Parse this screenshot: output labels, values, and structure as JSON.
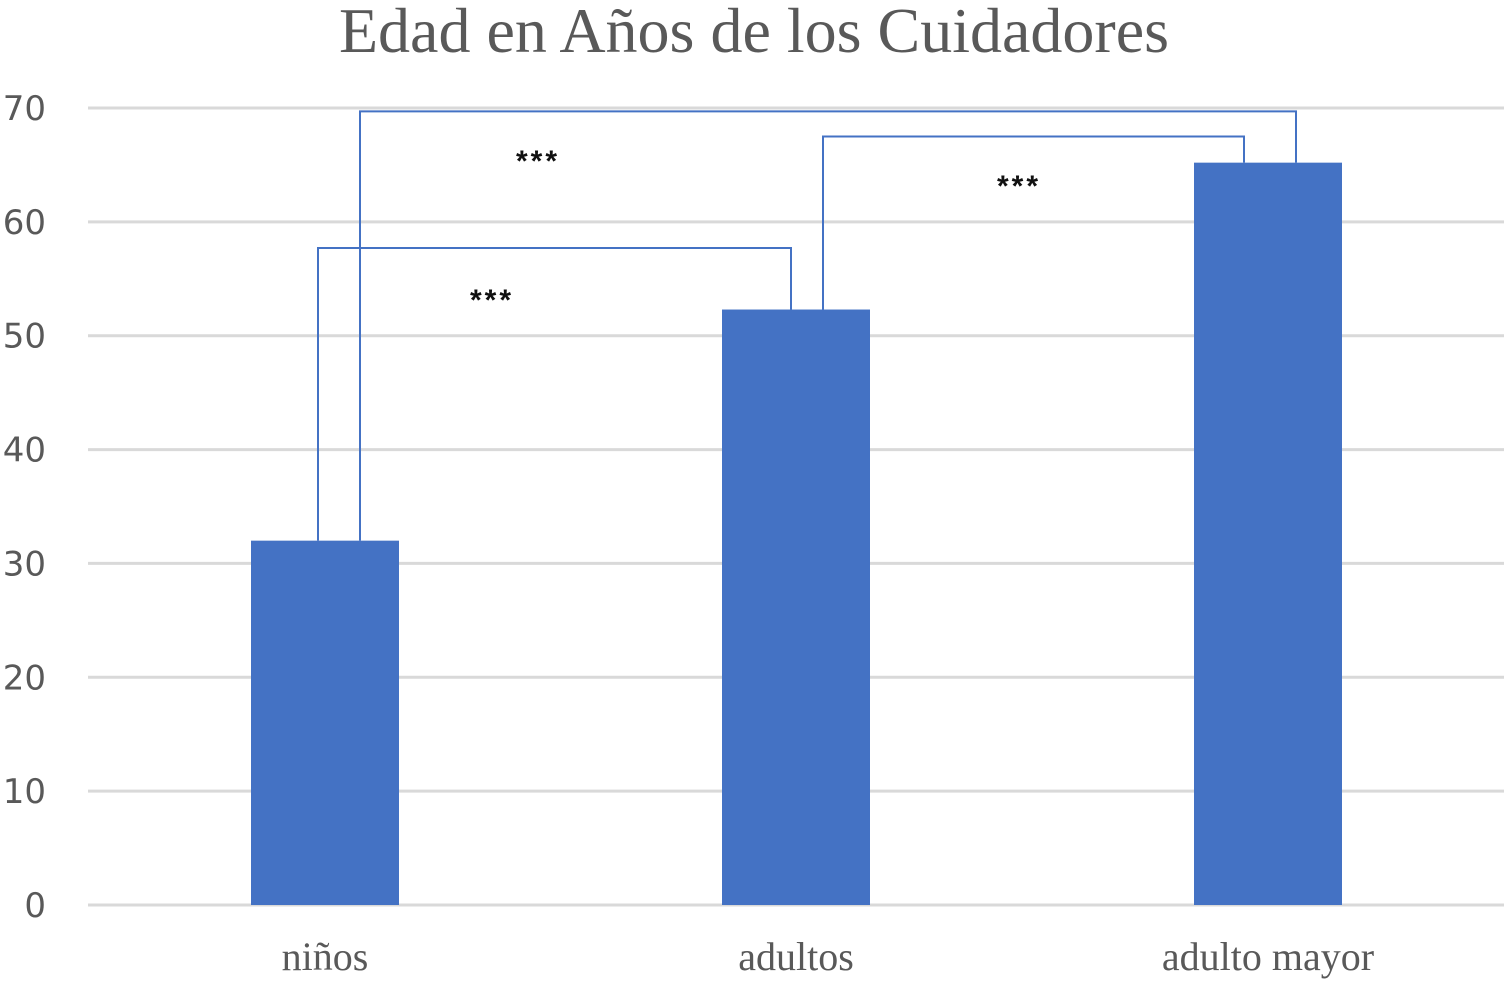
{
  "chart_data": {
    "type": "bar",
    "title": "Edad en Años de los Cuidadores",
    "xlabel": "",
    "ylabel": "",
    "categories": [
      "niños",
      "adultos",
      "adulto mayor"
    ],
    "values": [
      32,
      52.3,
      65.2
    ],
    "ylim": [
      0,
      70
    ],
    "yticks": [
      0,
      10,
      20,
      30,
      40,
      50,
      60,
      70
    ],
    "grid": true,
    "legend": "none",
    "colors": {
      "bar": "#4472C4",
      "bracket": "#4472C4",
      "grid": "#D9D9D9",
      "text": "#595959"
    },
    "significance": [
      {
        "from": "niños",
        "to": "adultos",
        "label": "***",
        "height": 57.7
      },
      {
        "from": "niños",
        "to": "adulto mayor",
        "label": "***",
        "height": 69.7
      },
      {
        "from": "adultos",
        "to": "adulto mayor",
        "label": "***",
        "height": 67.5
      }
    ]
  }
}
